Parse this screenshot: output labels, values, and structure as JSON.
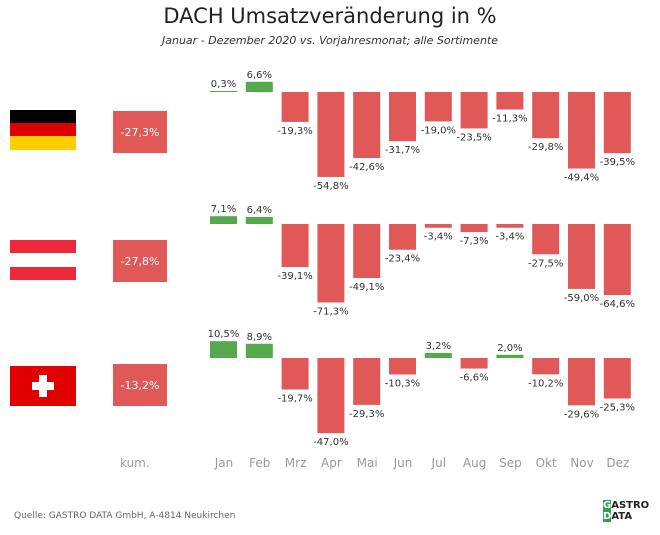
{
  "chart_data": {
    "type": "bar",
    "title": "DACH Umsatzveränderung in %",
    "subtitle": "Januar - Dezember 2020 vs. Vorjahresmonat; alle Sortimente",
    "categories": [
      "Jan",
      "Feb",
      "Mrz",
      "Apr",
      "Mai",
      "Jun",
      "Jul",
      "Aug",
      "Sep",
      "Okt",
      "Nov",
      "Dez"
    ],
    "kum_label": "kum.",
    "series": [
      {
        "country": "Deutschland",
        "kum": "-27,3%",
        "values": [
          0.3,
          6.6,
          -19.3,
          -54.8,
          -42.6,
          -31.7,
          -19.0,
          -23.5,
          -11.3,
          -29.8,
          -49.4,
          -39.5
        ]
      },
      {
        "country": "Österreich",
        "kum": "-27,8%",
        "values": [
          7.1,
          6.4,
          -39.1,
          -71.3,
          -49.1,
          -23.4,
          -3.4,
          -7.3,
          -3.4,
          -27.5,
          -59.0,
          -64.6
        ]
      },
      {
        "country": "Schweiz",
        "kum": "-13,2%",
        "values": [
          10.5,
          8.9,
          -19.7,
          -47.0,
          -29.3,
          -10.3,
          3.2,
          -6.6,
          2.0,
          -10.2,
          -29.6,
          -25.3
        ]
      }
    ],
    "colors": {
      "positive": "#55a84b",
      "negative": "#e05858"
    }
  },
  "footer": {
    "source": "Quelle: GASTRO DATA GmbH, A-4814 Neukirchen",
    "logo": "GASTRO DATA"
  }
}
